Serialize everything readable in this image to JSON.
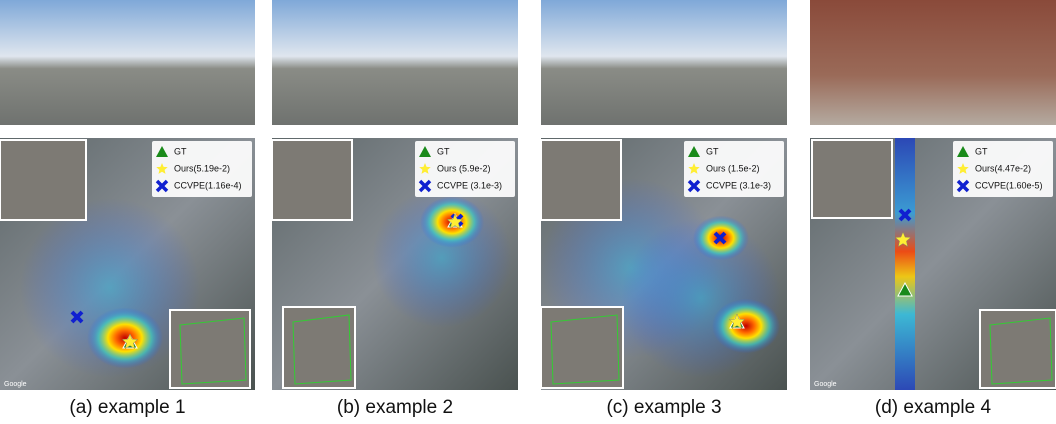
{
  "panels": [
    {
      "caption": "(a) example 1",
      "legend": [
        "GT",
        "Ours(5.19e-2)",
        "CCVPE(1.16e-4)"
      ],
      "watermark": "Google"
    },
    {
      "caption": "(b) example 2",
      "legend": [
        "GT",
        "Ours (5.9e-2)",
        "CCVPE (3.1e-3)"
      ]
    },
    {
      "caption": "(c) example 3",
      "legend": [
        "GT",
        "Ours (1.5e-2)",
        "CCVPE (3.1e-3)"
      ]
    },
    {
      "caption": "(d) example 4",
      "legend": [
        "GT",
        "Ours(4.47e-2)",
        "CCVPE(1.60e-5)"
      ],
      "watermark": "Google"
    }
  ]
}
